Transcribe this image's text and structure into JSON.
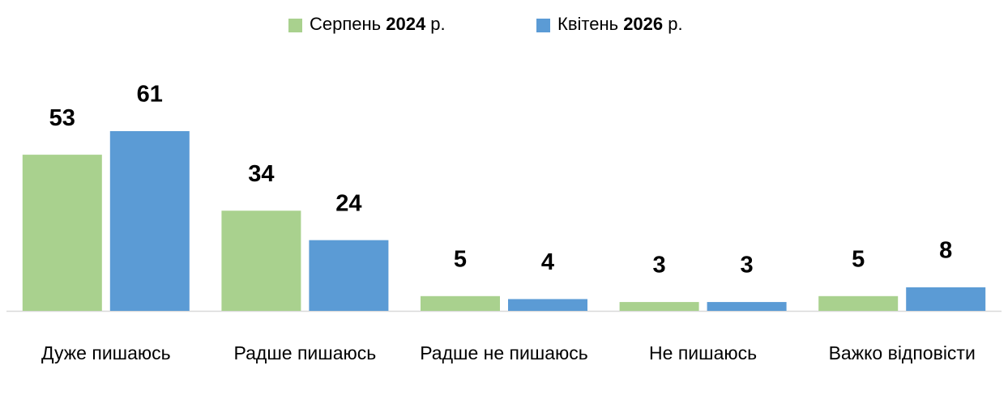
{
  "chart_data": {
    "type": "bar",
    "categories": [
      "Дуже пишаюсь",
      "Радше пишаюсь",
      "Радше не пишаюсь",
      "Не пишаюсь",
      "Важко відповісти"
    ],
    "series": [
      {
        "name": "Серпень 2024 р.",
        "color": "#a9d18e",
        "values": [
          53,
          34,
          5,
          3,
          5
        ]
      },
      {
        "name": "Квітень 2026 р.",
        "color": "#5b9bd5",
        "values": [
          61,
          24,
          4,
          3,
          8
        ]
      }
    ],
    "legend": "top"
  }
}
